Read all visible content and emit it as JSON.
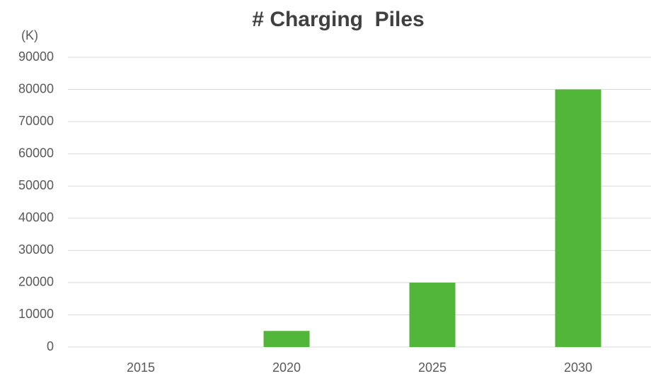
{
  "chart_data": {
    "type": "bar",
    "title": "# Charging  Piles",
    "y_label": "(K)",
    "categories": [
      "2015",
      "2020",
      "2025",
      "2030"
    ],
    "values": [
      0,
      5000,
      20000,
      80000
    ],
    "color": "#52b63a",
    "ylim": [
      0,
      90000
    ],
    "yticks": [
      0,
      10000,
      20000,
      30000,
      40000,
      50000,
      60000,
      70000,
      80000,
      90000
    ],
    "grid": true
  }
}
